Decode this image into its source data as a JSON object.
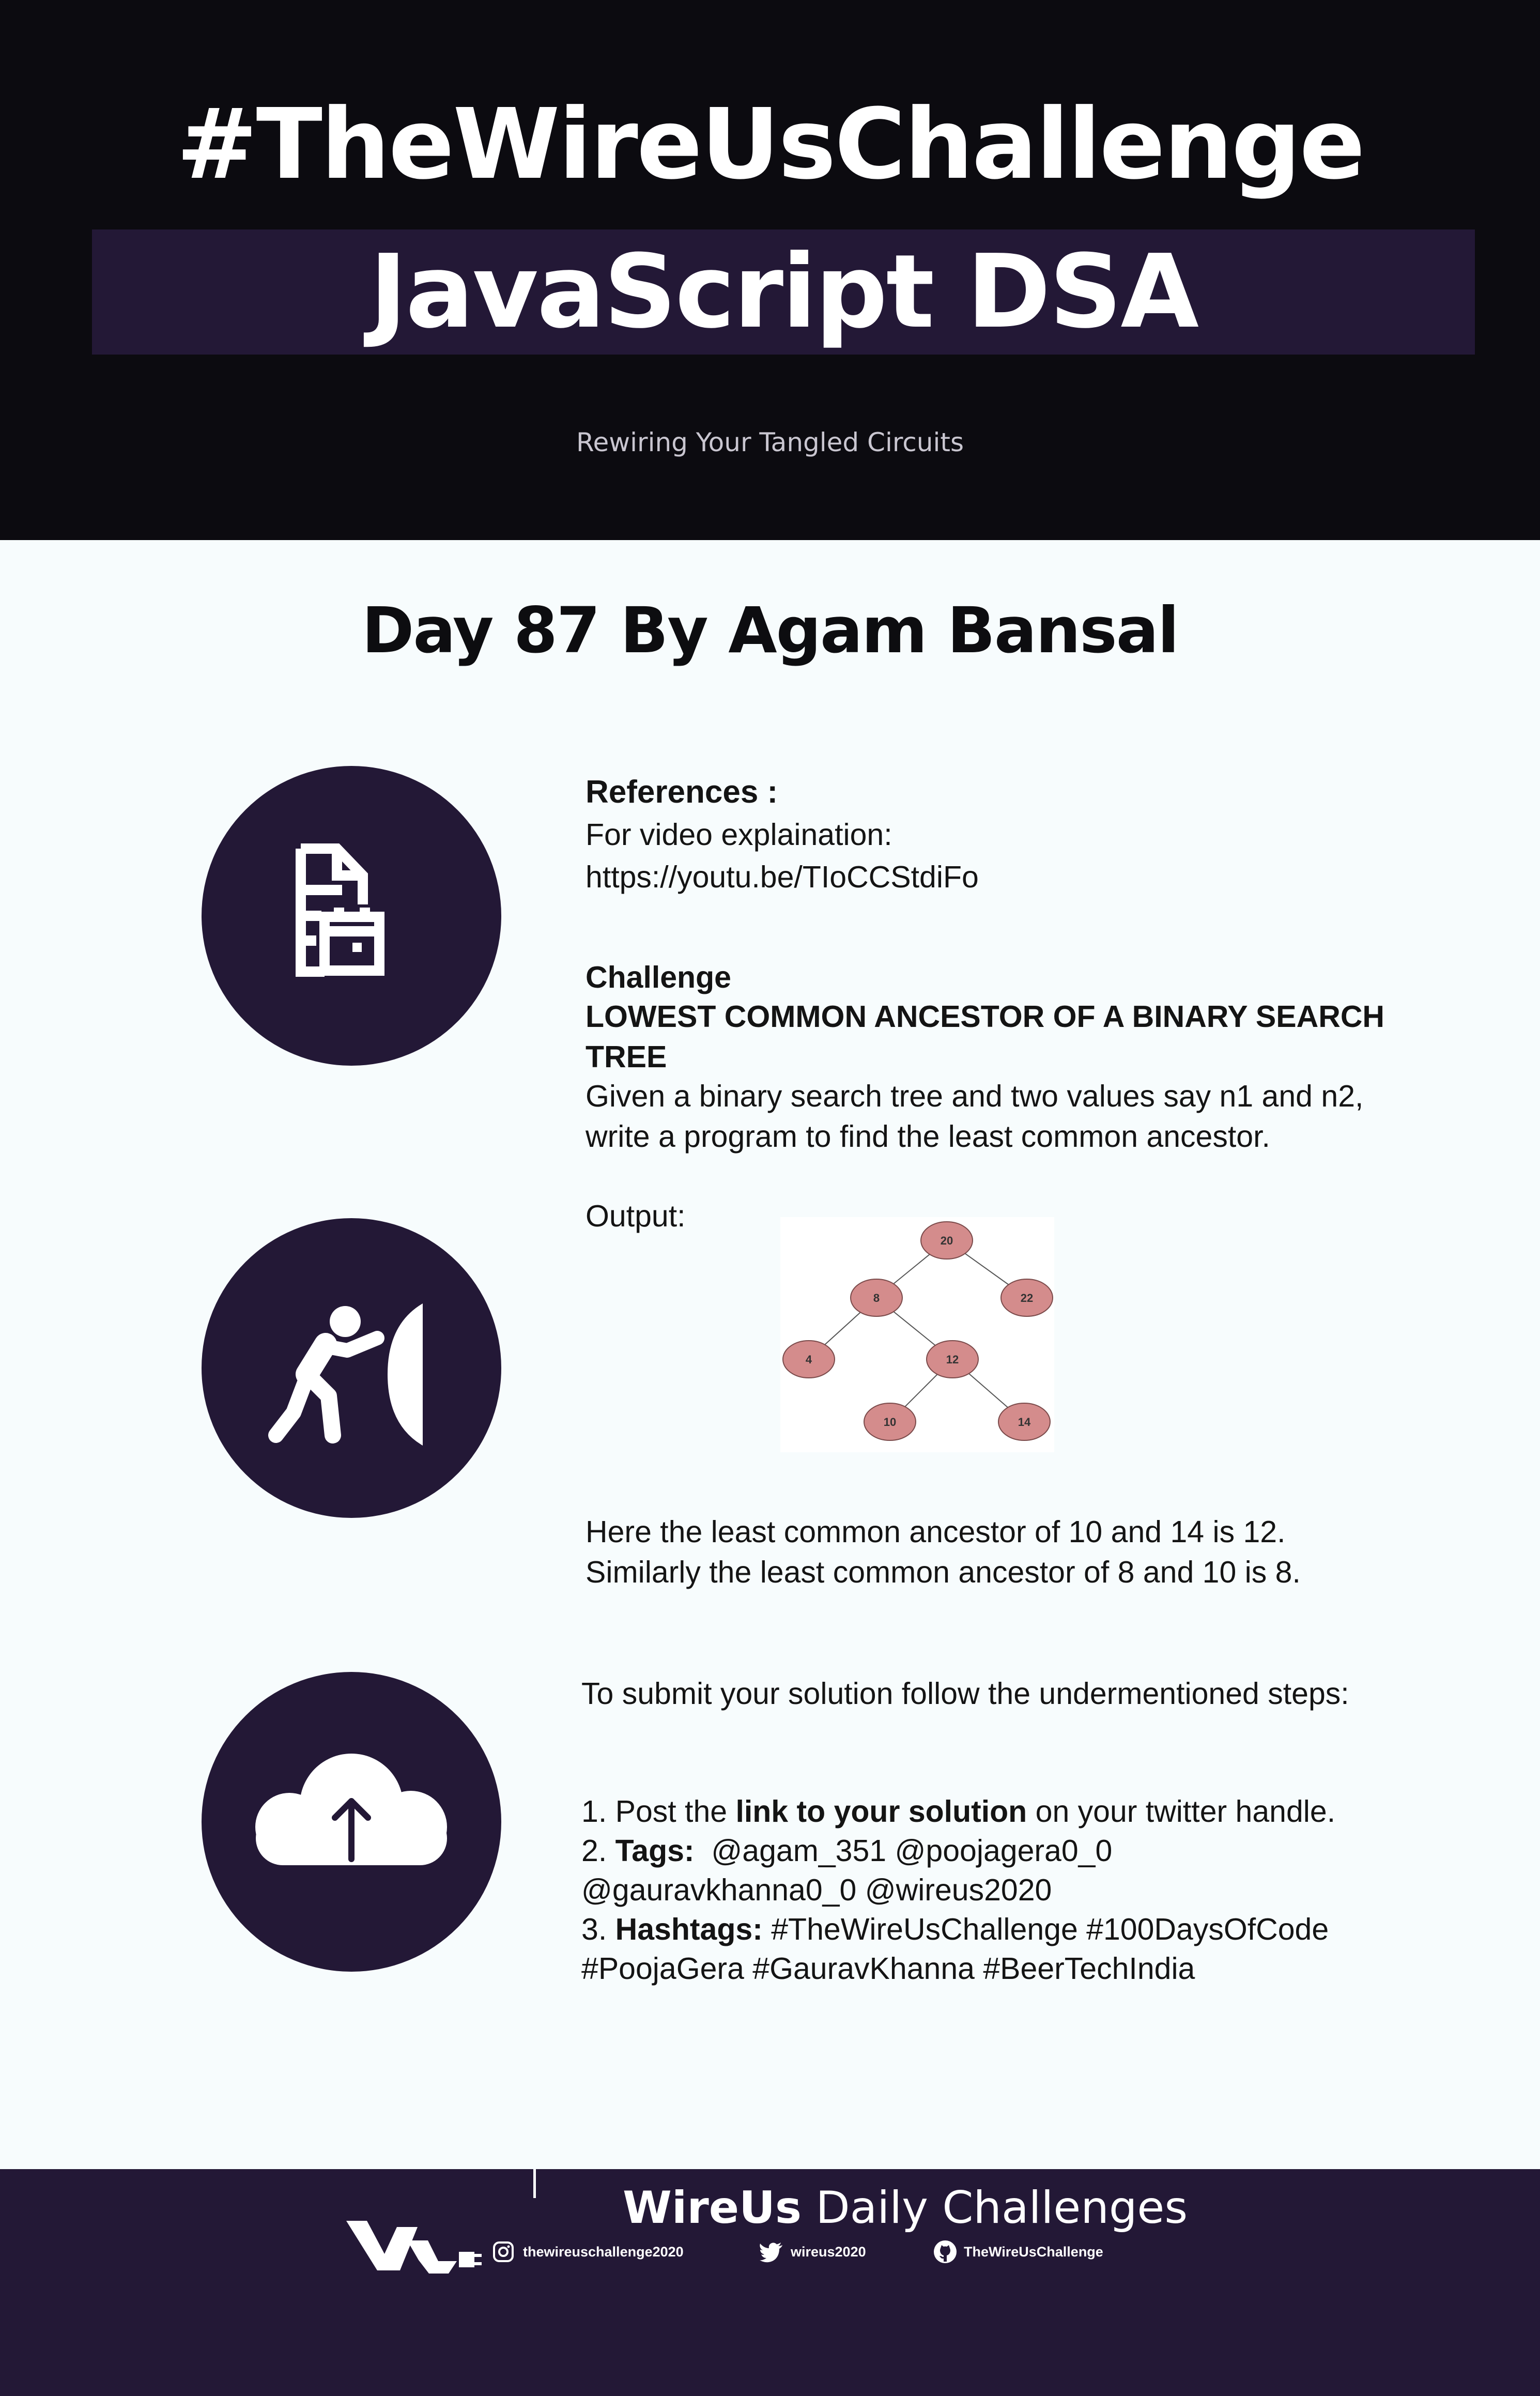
{
  "header": {
    "hashtag_title": "#TheWireUsChallenge",
    "subject_title": "JavaScript DSA",
    "tagline": "Rewiring Your Tangled Circuits"
  },
  "day_title": "Day 87 By Agam Bansal",
  "icons": {
    "references": "document-calendar-icon",
    "challenge": "person-pushing-wall-icon",
    "submit": "cloud-upload-icon"
  },
  "references": {
    "heading": "References :",
    "video_label": "For video explaination:",
    "video_url": "https://youtu.be/TIoCCStdiFo"
  },
  "challenge": {
    "heading": "Challenge",
    "title": "LOWEST COMMON ANCESTOR OF A BINARY SEARCH TREE",
    "description": "Given a binary search tree and two values say n1 and n2, write a program to find the least common ancestor.",
    "output_label": "Output:",
    "tree": {
      "nodes": [
        "20",
        "8",
        "22",
        "4",
        "12",
        "10",
        "14"
      ],
      "edges": [
        [
          "20",
          "8"
        ],
        [
          "20",
          "22"
        ],
        [
          "8",
          "4"
        ],
        [
          "8",
          "12"
        ],
        [
          "12",
          "10"
        ],
        [
          "12",
          "14"
        ]
      ],
      "node_fill": "#d48c8c",
      "node_stroke": "#7a4a4a"
    },
    "explanation_1": "Here the least common ancestor of 10 and 14 is 12.",
    "explanation_2": "Similarly the least common ancestor of 8 and 10 is 8."
  },
  "submit": {
    "intro": "To submit your solution follow the undermentioned steps:",
    "step1_prefix": "1. Post the ",
    "step1_bold": "link to your solution",
    "step1_suffix": " on your twitter handle.",
    "step2_prefix": "2. ",
    "step2_bold": "Tags:",
    "step2_tags_line1": "  @agam_351 @poojagera0_0",
    "step2_tags_line2": "@gauravkhanna0_0 @wireus2020",
    "step3_prefix": "3. ",
    "step3_bold": "Hashtags:",
    "step3_line1": " #TheWireUsChallenge #100DaysOfCode",
    "step3_line2": "#PoojaGera #GauravKhanna #BeerTechIndia"
  },
  "footer": {
    "brand": "WireUs",
    "title_suffix": " Daily Challenges",
    "logo": "wireus-logo-icon",
    "instagram": "thewireuschallenge2020",
    "twitter": "wireus2020",
    "github": "TheWireUsChallenge"
  },
  "colors": {
    "header_bg": "#0c0b10",
    "accent_purple": "#231836",
    "page_bg": "#f7fcfd"
  }
}
